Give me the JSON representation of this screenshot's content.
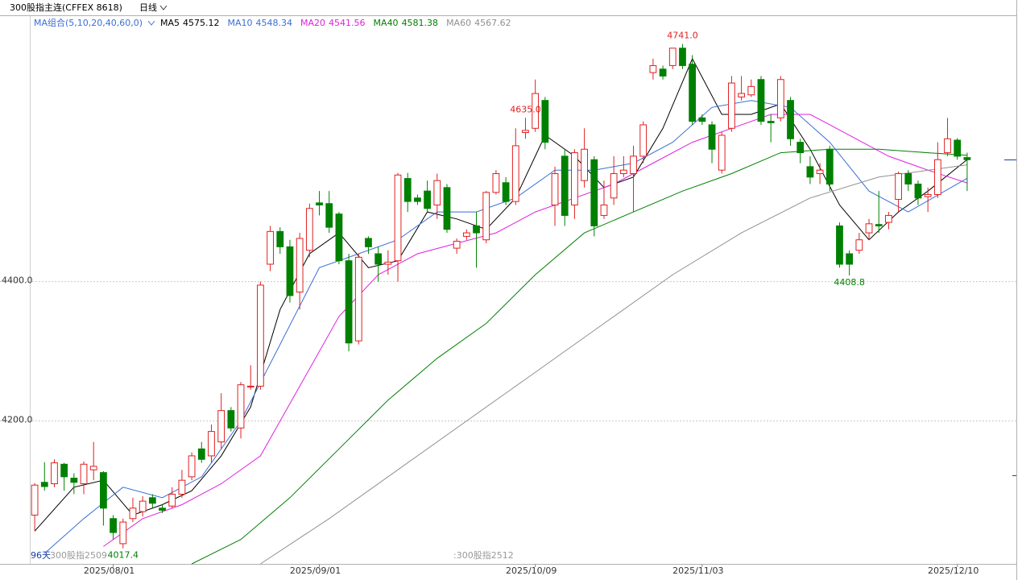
{
  "chart_data": {
    "type": "candlestick",
    "title": "300股指主连(CFFEX 8618)",
    "period": "日线",
    "ma_group": "MA组合(5,10,20,40,60,0)",
    "notes": [
      "96天",
      "300股指2509",
      ":300股指2512"
    ],
    "up_color": "#e02020",
    "down_color": "#008000",
    "ylim": [
      3995,
      4781
    ],
    "yticks": [
      {
        "value": 4200,
        "label": "4200.0"
      },
      {
        "value": 4400,
        "label": "4400.0"
      }
    ],
    "grid": true,
    "categories": [
      null,
      null,
      null,
      null,
      null,
      null,
      null,
      null,
      "2025/08/01",
      null,
      null,
      null,
      null,
      null,
      null,
      null,
      null,
      null,
      null,
      null,
      null,
      null,
      null,
      null,
      null,
      null,
      null,
      null,
      null,
      "2025/09/01",
      null,
      null,
      null,
      null,
      null,
      null,
      null,
      null,
      null,
      null,
      null,
      null,
      null,
      null,
      null,
      null,
      null,
      null,
      null,
      null,
      null,
      "2025/10/09",
      null,
      null,
      null,
      null,
      null,
      null,
      null,
      null,
      null,
      null,
      null,
      null,
      null,
      null,
      null,
      null,
      "2025/11/03",
      null,
      null,
      null,
      null,
      null,
      null,
      null,
      null,
      null,
      null,
      null,
      null,
      null,
      null,
      null,
      null,
      null,
      null,
      null,
      null,
      null,
      null,
      null,
      null,
      null,
      "2025/12/10",
      null
    ],
    "candles": {
      "open": [
        4065,
        4112,
        4110,
        4138,
        4118,
        4110,
        4130,
        4126,
        4060,
        4024,
        4060,
        4070,
        4090,
        4075,
        4078,
        4095,
        4120,
        4160,
        4150,
        4170,
        4215,
        4190,
        4249,
        4250,
        4425,
        4472,
        4450,
        4385,
        4445,
        4513,
        4512,
        4497,
        4430,
        4315,
        4462,
        4440,
        4425,
        4430,
        4548,
        4520,
        4530,
        4510,
        4535,
        4448,
        4465,
        4480,
        4460,
        4528,
        4542,
        4515,
        4614,
        4620,
        4660,
        4510,
        4580,
        4510,
        4545,
        4575,
        4495,
        4520,
        4555,
        4555,
        4580,
        4700,
        4705,
        4710,
        4735,
        4712,
        4635,
        4625,
        4560,
        4620,
        4665,
        4668,
        4690,
        4630,
        4635,
        4660,
        4600,
        4565,
        4555,
        4590,
        4480,
        4440,
        4445,
        4470,
        4482,
        4485,
        4518,
        4555,
        4540,
        4522,
        4525,
        4585,
        4603,
        4578
      ],
      "high": [
        4111,
        4141,
        4145,
        4140,
        4125,
        4142,
        4170,
        4128,
        4065,
        4060,
        4090,
        4092,
        4095,
        4080,
        4105,
        4130,
        4155,
        4170,
        4195,
        4240,
        4220,
        4256,
        4280,
        4400,
        4480,
        4478,
        4460,
        4470,
        4512,
        4530,
        4530,
        4500,
        4440,
        4440,
        4465,
        4450,
        4445,
        4556,
        4556,
        4525,
        4545,
        4555,
        4540,
        4462,
        4475,
        4500,
        4530,
        4560,
        4550,
        4620,
        4635,
        4690,
        4665,
        4565,
        4590,
        4590,
        4620,
        4580,
        4545,
        4580,
        4580,
        4595,
        4630,
        4720,
        4710,
        4735,
        4741,
        4725,
        4640,
        4630,
        4615,
        4695,
        4695,
        4690,
        4695,
        4640,
        4695,
        4665,
        4605,
        4580,
        4570,
        4595,
        4485,
        4445,
        4470,
        4490,
        4530,
        4500,
        4558,
        4560,
        4545,
        4535,
        4600,
        4635,
        4606,
        4585
      ],
      "low": [
        4042,
        4100,
        4105,
        4100,
        4095,
        4095,
        4115,
        4050,
        4030,
        4017.4,
        4055,
        4063,
        4075,
        4068,
        4075,
        4090,
        4115,
        4140,
        4140,
        4160,
        4185,
        4175,
        4245,
        4245,
        4415,
        4440,
        4370,
        4360,
        4435,
        4495,
        4470,
        4425,
        4300,
        4310,
        4440,
        4400,
        4410,
        4400,
        4500,
        4510,
        4500,
        4490,
        4470,
        4440,
        4460,
        4420,
        4455,
        4525,
        4510,
        4510,
        4605,
        4615,
        4590,
        4480,
        4480,
        4490,
        4535,
        4465,
        4490,
        4510,
        4550,
        4500,
        4570,
        4690,
        4690,
        4705,
        4705,
        4625,
        4625,
        4570,
        4555,
        4615,
        4660,
        4665,
        4625,
        4600,
        4630,
        4595,
        4570,
        4540,
        4540,
        4530,
        4420,
        4408.8,
        4440,
        4460,
        4470,
        4475,
        4500,
        4530,
        4510,
        4500,
        4520,
        4580,
        4575,
        4530
      ],
      "close": [
        4108,
        4106,
        4140,
        4120,
        4112,
        4138,
        4135,
        4075,
        4040,
        4055,
        4075,
        4085,
        4082,
        4072,
        4095,
        4115,
        4150,
        4145,
        4185,
        4215,
        4190,
        4252,
        4250,
        4395,
        4472,
        4450,
        4380,
        4462,
        4505,
        4510,
        4478,
        4430,
        4312,
        4435,
        4450,
        4425,
        4428,
        4553,
        4515,
        4515,
        4505,
        4545,
        4475,
        4458,
        4470,
        4470,
        4528,
        4555,
        4515,
        4595,
        4617,
        4670,
        4600,
        4555,
        4495,
        4585,
        4590,
        4480,
        4510,
        4555,
        4560,
        4580,
        4625,
        4710,
        4695,
        4735,
        4710,
        4630,
        4630,
        4590,
        4610,
        4685,
        4670,
        4680,
        4630,
        4628,
        4690,
        4605,
        4585,
        4550,
        4560,
        4540,
        4425,
        4425,
        4460,
        4483,
        4480,
        4495,
        4555,
        4540,
        4520,
        4525,
        4575,
        4605,
        4580,
        4575
      ]
    },
    "annotations": [
      {
        "text": "4741.0",
        "value": 4741
      },
      {
        "text": "4635.0",
        "value": 4635
      },
      {
        "text": "4408.8",
        "value": 4408.8
      },
      {
        "text": "4017.4",
        "value": 4017.4
      }
    ],
    "series": [
      {
        "name": "MA5",
        "color": "#000000",
        "x": [
          0,
          4,
          7,
          10,
          13,
          16,
          19,
          22,
          25,
          28,
          31,
          34,
          37,
          40,
          43,
          46,
          49,
          52,
          55,
          58,
          61,
          64,
          67,
          70,
          73,
          76,
          79,
          82,
          85,
          88,
          91,
          95
        ],
        "values": [
          4042,
          4105,
          4115,
          4065,
          4080,
          4100,
          4150,
          4220,
          4360,
          4440,
          4470,
          4420,
          4430,
          4500,
          4490,
          4475,
          4520,
          4610,
          4580,
          4535,
          4550,
          4620,
          4720,
          4640,
          4640,
          4655,
          4590,
          4510,
          4460,
          4500,
          4530,
          4575.12
        ]
      },
      {
        "name": "MA10",
        "color": "#3a6fd8",
        "x": [
          1,
          5,
          9,
          13,
          17,
          21,
          25,
          29,
          33,
          37,
          41,
          45,
          49,
          53,
          57,
          61,
          65,
          69,
          73,
          77,
          81,
          85,
          89,
          95
        ],
        "values": [
          4010,
          4060,
          4105,
          4090,
          4120,
          4200,
          4310,
          4420,
          4440,
          4460,
          4500,
          4500,
          4520,
          4560,
          4560,
          4570,
          4600,
          4650,
          4660,
          4650,
          4600,
          4530,
          4500,
          4548.34
        ]
      },
      {
        "name": "MA20",
        "color": "#e020e0",
        "x": [
          7,
          11,
          15,
          19,
          23,
          27,
          31,
          35,
          39,
          43,
          47,
          51,
          55,
          59,
          63,
          67,
          71,
          75,
          79,
          83,
          87,
          91,
          95
        ],
        "values": [
          4020,
          4060,
          4080,
          4110,
          4150,
          4250,
          4350,
          4410,
          4440,
          4455,
          4470,
          4500,
          4520,
          4540,
          4570,
          4600,
          4620,
          4640,
          4640,
          4610,
          4580,
          4560,
          4541.56
        ]
      },
      {
        "name": "MA40",
        "color": "#008000",
        "x": [
          16,
          21,
          26,
          31,
          36,
          41,
          46,
          51,
          56,
          61,
          66,
          71,
          76,
          81,
          86,
          91,
          95
        ],
        "values": [
          3995,
          4030,
          4090,
          4160,
          4230,
          4290,
          4340,
          4410,
          4470,
          4500,
          4530,
          4555,
          4585,
          4590,
          4590,
          4585,
          4581.38
        ]
      },
      {
        "name": "MA60",
        "color": "#909090",
        "x": [
          23,
          30,
          37,
          44,
          51,
          58,
          65,
          72,
          79,
          86,
          95
        ],
        "values": [
          3995,
          4060,
          4130,
          4200,
          4270,
          4340,
          4410,
          4470,
          4520,
          4550,
          4567.62
        ]
      }
    ]
  }
}
